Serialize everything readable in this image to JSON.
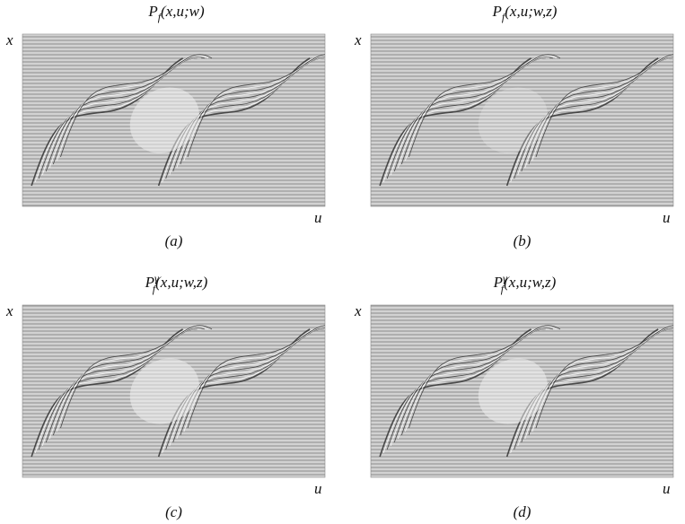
{
  "panels": [
    {
      "title": {
        "symbol": "P",
        "subscript": "f",
        "args": "(x,u;w)"
      },
      "y_label": "x",
      "x_label": "u",
      "caption": "(a)"
    },
    {
      "title": {
        "symbol": "P",
        "subscript": "f",
        "args": "(x,u;w,z)"
      },
      "y_label": "x",
      "x_label": "u",
      "caption": "(b)"
    },
    {
      "title": {
        "symbol": "P",
        "subscript": "f",
        "superscript": "γ",
        "args": "(x,u;w,z)"
      },
      "y_label": "x",
      "x_label": "u",
      "caption": "(c)"
    },
    {
      "title": {
        "symbol": "P",
        "subscript": "f",
        "superscript": "γ",
        "args": "(x,u;w,z)"
      },
      "y_label": "x",
      "x_label": "u",
      "caption": "(d)"
    }
  ]
}
